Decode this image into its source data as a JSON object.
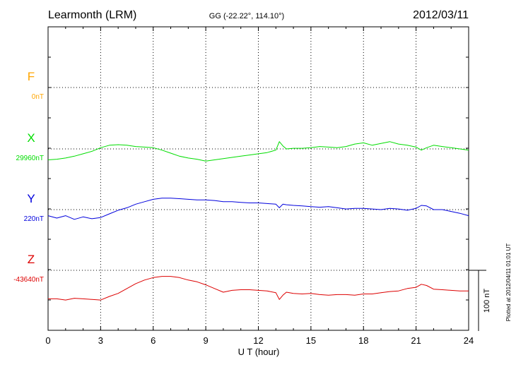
{
  "chart_data": {
    "type": "line",
    "station_title": "Learmonth (LRM)",
    "coords": "GG (-22.22°, 114.10°)",
    "date": "2012/03/11",
    "xlabel": "U T (hour)",
    "xlim": [
      0,
      24
    ],
    "xticks": [
      "0",
      "3",
      "6",
      "9",
      "12",
      "15",
      "18",
      "21",
      "24"
    ],
    "scale_bar_label": "100 nT",
    "plotted_note": "Plotted at 2012/04/11 01:01 UT",
    "grid": true,
    "series": [
      {
        "name": "F",
        "baseline_label": "0nT",
        "color": "#FFA500",
        "baseline_nT": 0,
        "x": [],
        "y": []
      },
      {
        "name": "X",
        "baseline_label": "29960nT",
        "color": "#00DD00",
        "baseline_nT": 29960,
        "x": [
          0,
          0.5,
          1,
          1.5,
          2,
          2.5,
          3,
          3.5,
          4,
          4.5,
          5,
          5.5,
          6,
          6.5,
          7,
          7.5,
          8,
          8.5,
          9,
          9.5,
          10,
          10.5,
          11,
          11.5,
          12,
          12.5,
          13,
          13.2,
          13.4,
          13.6,
          14,
          14.5,
          15,
          15.5,
          16,
          16.5,
          17,
          17.5,
          18,
          18.5,
          19,
          19.5,
          20,
          20.5,
          21,
          21.3,
          21.6,
          22,
          22.5,
          23,
          23.5,
          24
        ],
        "y": [
          29942,
          29943,
          29945,
          29948,
          29952,
          29956,
          29962,
          29966,
          29967,
          29966,
          29964,
          29963,
          29962,
          29958,
          29953,
          29948,
          29945,
          29943,
          29940,
          29942,
          29944,
          29946,
          29948,
          29950,
          29952,
          29954,
          29958,
          29972,
          29965,
          29960,
          29961,
          29961,
          29962,
          29964,
          29963,
          29962,
          29964,
          29968,
          29970,
          29966,
          29969,
          29972,
          29968,
          29966,
          29963,
          29958,
          29962,
          29966,
          29964,
          29962,
          29960,
          29958
        ]
      },
      {
        "name": "Y",
        "baseline_label": "220nT",
        "color": "#0000DD",
        "baseline_nT": 220,
        "x": [
          0,
          0.5,
          1,
          1.5,
          2,
          2.5,
          3,
          3.5,
          4,
          4.5,
          5,
          5.5,
          6,
          6.5,
          7,
          7.5,
          8,
          8.5,
          9,
          9.5,
          10,
          10.5,
          11,
          11.5,
          12,
          12.5,
          13,
          13.2,
          13.4,
          13.6,
          14,
          14.5,
          15,
          15.5,
          16,
          16.5,
          17,
          17.5,
          18,
          18.5,
          19,
          19.5,
          20,
          20.5,
          21,
          21.3,
          21.6,
          22,
          22.5,
          23,
          23.5,
          24
        ],
        "y": [
          210,
          206,
          210,
          204,
          208,
          205,
          207,
          213,
          219,
          223,
          229,
          233,
          237,
          239,
          239,
          238,
          237,
          236,
          236,
          235,
          233,
          233,
          232,
          231,
          231,
          230,
          229,
          223,
          229,
          228,
          227,
          226,
          225,
          224,
          225,
          223,
          221,
          222,
          222,
          221,
          220,
          222,
          221,
          219,
          222,
          227,
          226,
          220,
          220,
          217,
          214,
          210
        ]
      },
      {
        "name": "Z",
        "baseline_label": "-43640nT",
        "color": "#DD0000",
        "baseline_nT": -43640,
        "x": [
          0,
          0.5,
          1,
          1.5,
          2,
          2.5,
          3,
          3.5,
          4,
          4.5,
          5,
          5.5,
          6,
          6.5,
          7,
          7.5,
          8,
          8.5,
          9,
          9.5,
          10,
          10.5,
          11,
          11.5,
          12,
          12.5,
          13,
          13.2,
          13.4,
          13.6,
          14,
          14.5,
          15,
          15.5,
          16,
          16.5,
          17,
          17.5,
          18,
          18.5,
          19,
          19.5,
          20,
          20.5,
          21,
          21.3,
          21.6,
          22,
          22.5,
          23,
          23.5,
          24
        ],
        "y": [
          -43687,
          -43687,
          -43689,
          -43686,
          -43687,
          -43688,
          -43689,
          -43683,
          -43678,
          -43670,
          -43662,
          -43656,
          -43652,
          -43650,
          -43650,
          -43652,
          -43656,
          -43659,
          -43664,
          -43670,
          -43676,
          -43673,
          -43672,
          -43672,
          -43673,
          -43674,
          -43677,
          -43688,
          -43681,
          -43676,
          -43678,
          -43679,
          -43678,
          -43680,
          -43681,
          -43680,
          -43680,
          -43681,
          -43679,
          -43679,
          -43677,
          -43675,
          -43674,
          -43670,
          -43668,
          -43663,
          -43665,
          -43671,
          -43672,
          -43673,
          -43674,
          -43674
        ]
      }
    ]
  }
}
